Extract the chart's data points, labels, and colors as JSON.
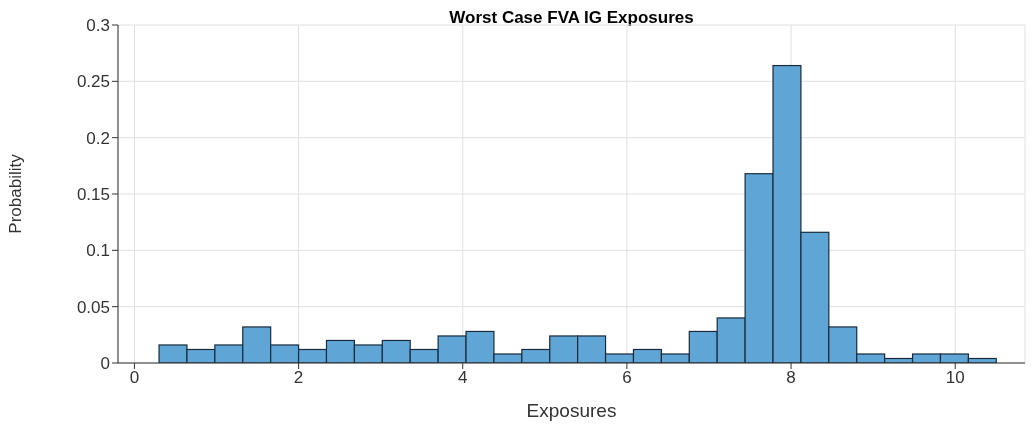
{
  "chart_data": {
    "type": "histogram",
    "title": "Worst Case FVA IG Exposures",
    "xlabel": "Exposures",
    "ylabel": "Probability",
    "color": "#5fa6d6",
    "bins": [
      0.3,
      0.64,
      0.98,
      1.32,
      1.66,
      2.0,
      2.34,
      2.68,
      3.02,
      3.36,
      3.7,
      4.04,
      4.38,
      4.72,
      5.06,
      5.4,
      5.74,
      6.08,
      6.42,
      6.76,
      7.1,
      7.44,
      7.78,
      8.12,
      8.46,
      8.8,
      9.14,
      9.48,
      9.82,
      10.16,
      10.5
    ],
    "values": [
      0.016,
      0.012,
      0.016,
      0.032,
      0.016,
      0.012,
      0.02,
      0.016,
      0.02,
      0.012,
      0.024,
      0.028,
      0.008,
      0.012,
      0.024,
      0.024,
      0.008,
      0.012,
      0.008,
      0.028,
      0.04,
      0.168,
      0.264,
      0.116,
      0.032,
      0.008,
      0.004,
      0.008,
      0.008,
      0.004
    ],
    "xlim": [
      -0.2,
      10.85
    ],
    "xticks": [
      0,
      2,
      4,
      6,
      8,
      10
    ],
    "ylim": [
      0,
      0.3
    ],
    "yticks": [
      0,
      0.05,
      0.1,
      0.15,
      0.2,
      0.25,
      0.3
    ],
    "grid": true
  }
}
